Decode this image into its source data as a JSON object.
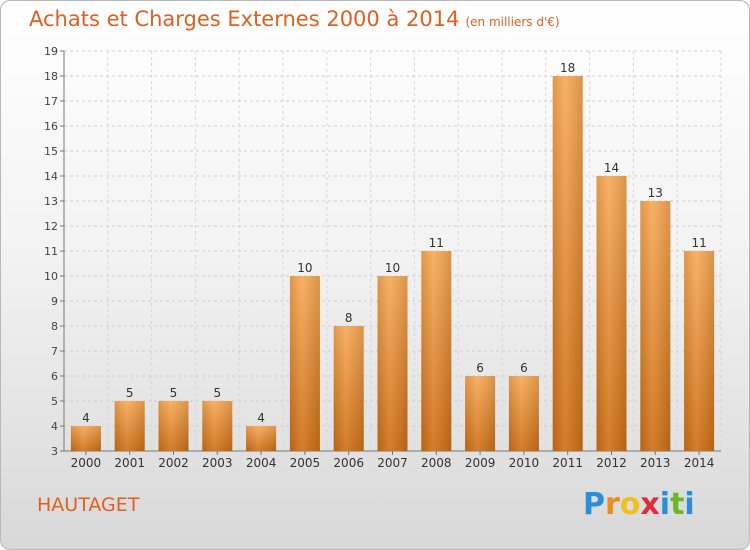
{
  "header": {
    "title": "Achats et Charges Externes 2000 à 2014",
    "subtitle": "(en milliers d'€)"
  },
  "footer": {
    "city": "HAUTAGET",
    "logo_letters": [
      "P",
      "r",
      "o",
      "x",
      "i",
      "t",
      "i"
    ]
  },
  "colors": {
    "bar_light": "#f6a54e",
    "bar_dark": "#cc6d12",
    "title": "#e0601f",
    "grid": "#cccccc"
  },
  "chart_data": {
    "type": "bar",
    "title": "Achats et Charges Externes 2000 à 2014",
    "subtitle": "(en milliers d'€)",
    "categories": [
      "2000",
      "2001",
      "2002",
      "2003",
      "2004",
      "2005",
      "2006",
      "2007",
      "2008",
      "2009",
      "2010",
      "2011",
      "2012",
      "2013",
      "2014"
    ],
    "values": [
      4,
      5,
      5,
      5,
      4,
      10,
      8,
      10,
      11,
      6,
      6,
      18,
      14,
      13,
      11
    ],
    "ylim": [
      3,
      19
    ],
    "yticks": [
      3,
      4,
      5,
      6,
      7,
      8,
      9,
      10,
      11,
      12,
      13,
      14,
      15,
      16,
      17,
      18,
      19
    ],
    "grid": true,
    "data_labels": true,
    "legend": "none"
  }
}
